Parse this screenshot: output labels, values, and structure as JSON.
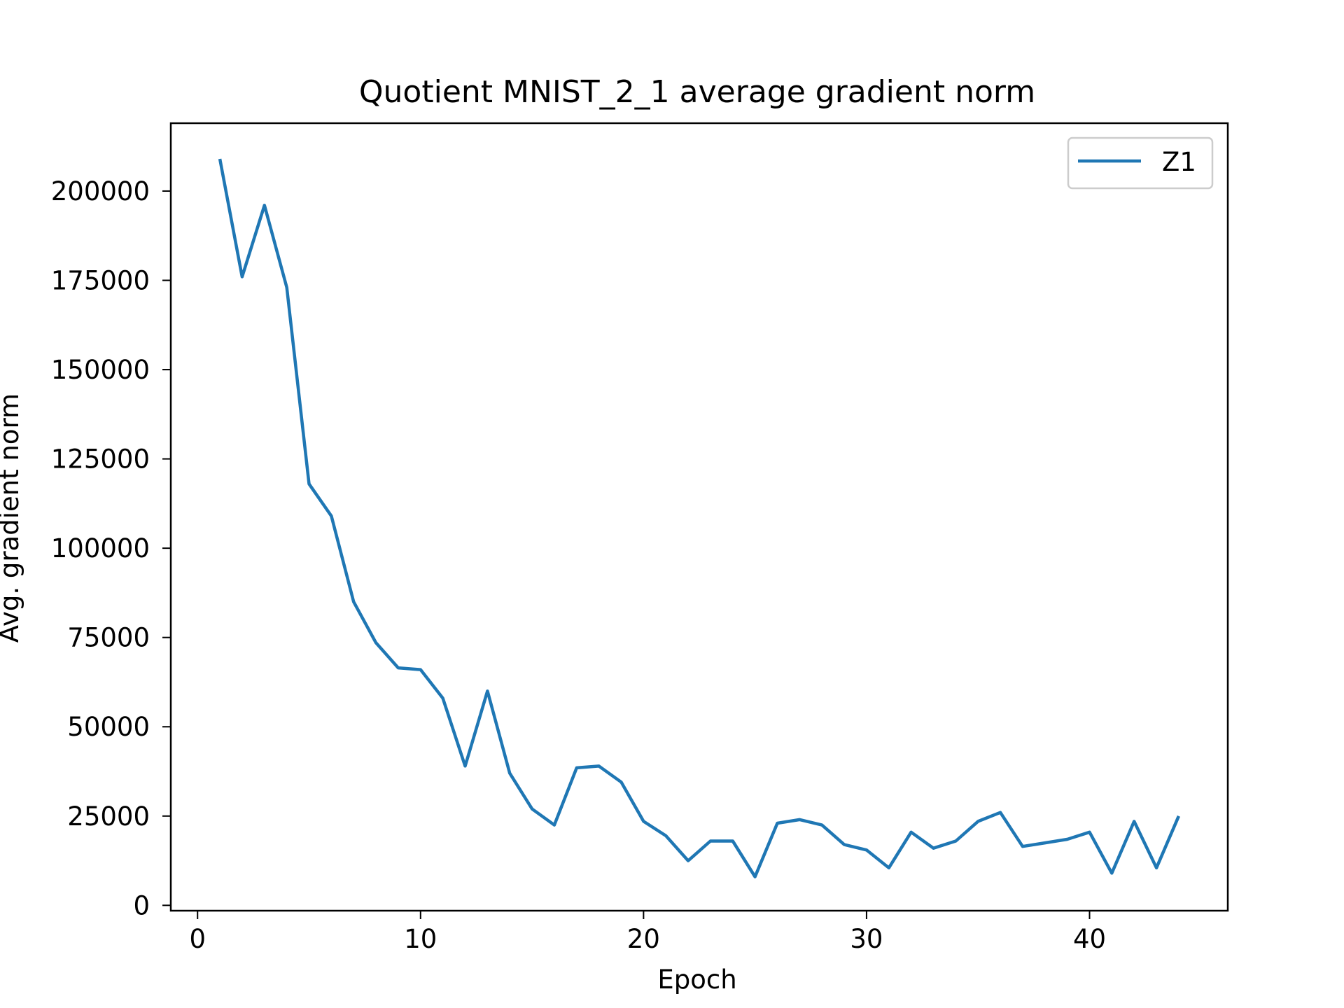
{
  "chart_data": {
    "type": "line",
    "title": "Quotient MNIST_2_1 average gradient norm",
    "xlabel": "Epoch",
    "ylabel": "Avg. gradient norm",
    "xlim": [
      -1.2,
      46.2
    ],
    "ylim": [
      -1500,
      219000
    ],
    "xticks": [
      0,
      10,
      20,
      30,
      40
    ],
    "yticks": [
      0,
      25000,
      50000,
      75000,
      100000,
      125000,
      150000,
      175000,
      200000
    ],
    "grid": false,
    "legend_position": "top-right",
    "series": [
      {
        "name": "Z1",
        "color": "#1f77b4",
        "x": [
          1,
          2,
          3,
          4,
          5,
          6,
          7,
          8,
          9,
          10,
          11,
          12,
          13,
          14,
          15,
          16,
          17,
          18,
          19,
          20,
          21,
          22,
          23,
          24,
          25,
          26,
          27,
          28,
          29,
          30,
          31,
          32,
          33,
          34,
          35,
          36,
          37,
          38,
          39,
          40,
          41,
          42,
          43,
          44
        ],
        "y": [
          209000,
          176000,
          196000,
          173000,
          118000,
          109000,
          85000,
          73500,
          66500,
          66000,
          58000,
          39000,
          60000,
          37000,
          27000,
          22500,
          38500,
          39000,
          34500,
          23500,
          19500,
          12500,
          18000,
          18000,
          8000,
          23000,
          24000,
          22500,
          17000,
          15500,
          10500,
          20500,
          16000,
          18000,
          23500,
          26000,
          16500,
          17500,
          18500,
          20500,
          9000,
          23500,
          10500,
          25000
        ]
      }
    ]
  }
}
